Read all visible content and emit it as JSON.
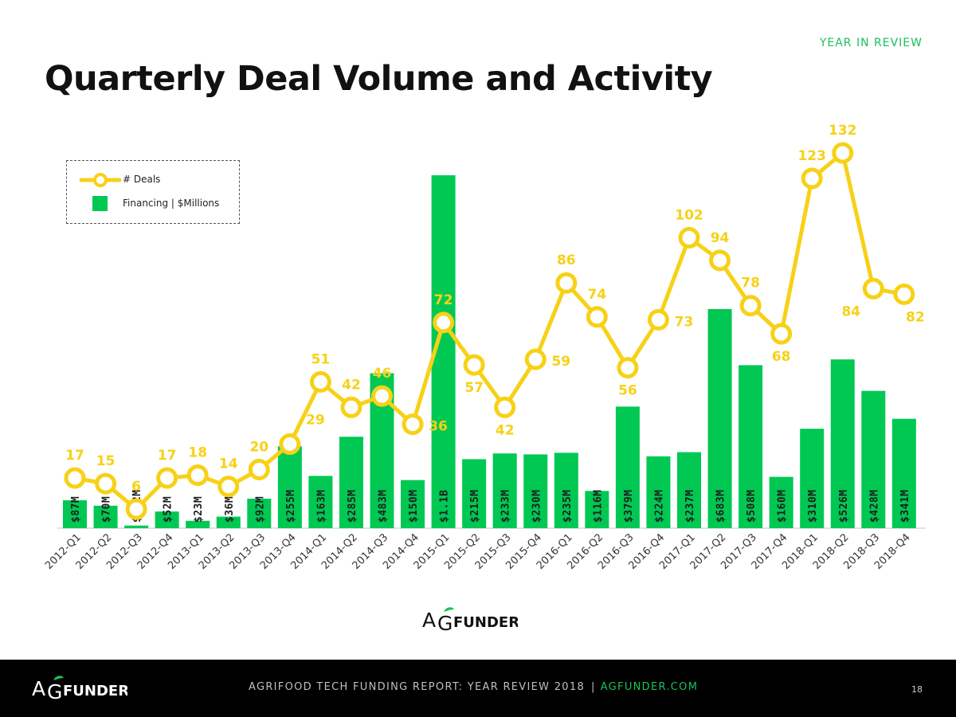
{
  "header": {
    "tag": "YEAR IN REVIEW",
    "title": "Quarterly Deal Volume and Activity"
  },
  "legend": {
    "deals": "# Deals",
    "financing": "Financing | $Millions"
  },
  "brand": {
    "logo_a": "A",
    "logo_g": "G",
    "logo_rest": "FUNDER"
  },
  "footer": {
    "report": "AGRIFOOD TECH FUNDING REPORT: YEAR REVIEW 2018",
    "separator": "|",
    "site": "AGFUNDER.COM",
    "page": "18"
  },
  "colors": {
    "bar": "#00c853",
    "line": "#f7d117",
    "accent": "#19c15a",
    "footer_bg": "#000000"
  },
  "chart_data": {
    "type": "bar+line",
    "categories": [
      "2012-Q1",
      "2012-Q2",
      "2012-Q3",
      "2012-Q4",
      "2013-Q1",
      "2013-Q2",
      "2013-Q3",
      "2013-Q4",
      "2014-Q1",
      "2014-Q2",
      "2014-Q3",
      "2014-Q4",
      "2015-Q1",
      "2015-Q2",
      "2015-Q3",
      "2015-Q4",
      "2016-Q1",
      "2016-Q2",
      "2016-Q3",
      "2016-Q4",
      "2017-Q1",
      "2017-Q2",
      "2017-Q3",
      "2017-Q4",
      "2018-Q1",
      "2018-Q2",
      "2018-Q3",
      "2018-Q4"
    ],
    "series": [
      {
        "name": "Financing | $Millions",
        "type": "bar",
        "values": [
          87,
          70,
          8.2,
          52,
          23,
          36,
          92,
          255,
          163,
          285,
          483,
          150,
          1100,
          215,
          233,
          230,
          235,
          116,
          379,
          224,
          237,
          683,
          508,
          160,
          310,
          526,
          428,
          341
        ],
        "labels": [
          "$87M",
          "$70M",
          "$8.2M",
          "$52M",
          "$23M",
          "$36M",
          "$92M",
          "$255M",
          "$163M",
          "$285M",
          "$483M",
          "$150M",
          "$1.1B",
          "$215M",
          "$233M",
          "$230M",
          "$235M",
          "$116M",
          "$379M",
          "$224M",
          "$237M",
          "$683M",
          "$508M",
          "$160M",
          "$310M",
          "$526M",
          "$428M",
          "$341M"
        ]
      },
      {
        "name": "# Deals",
        "type": "line",
        "values": [
          17,
          15,
          6,
          17,
          18,
          14,
          20,
          29,
          51,
          42,
          46,
          36,
          72,
          57,
          42,
          59,
          86,
          74,
          56,
          73,
          102,
          94,
          78,
          68,
          123,
          132,
          84,
          82
        ]
      }
    ],
    "legend_position": "top-left",
    "grid": false
  }
}
